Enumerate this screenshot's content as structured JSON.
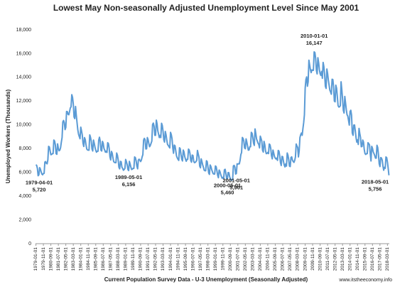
{
  "chart_data": {
    "type": "line",
    "title": "Lowest May Non-seasonally Adjusted Unemployment Level Since May 2001",
    "x_label": "Current Population Survey Data - U-3 Unemployment (Seasonally Adjusted)",
    "y_label": "Unemployed Workers (Thousands)",
    "source": "www.itstheeconomy.info",
    "ylim": [
      0,
      18000
    ],
    "yticks": [
      0,
      {
        "value": 2000,
        "label": "2,000"
      },
      {
        "value": 4000,
        "label": "4,000"
      },
      {
        "value": 6000,
        "label": "6,000"
      },
      {
        "value": 8000,
        "label": "8,000"
      },
      {
        "value": 10000,
        "label": "10,000"
      },
      {
        "value": 12000,
        "label": "12,000"
      },
      {
        "value": 14000,
        "label": "14,000"
      },
      {
        "value": 16000,
        "label": "16,000"
      },
      {
        "value": 18000,
        "label": "18,000"
      }
    ],
    "grid": false,
    "categories": [
      "1979-01-01",
      null,
      null,
      null,
      null,
      null,
      null,
      null,
      null,
      null,
      "1979-11-01",
      null,
      null,
      null,
      null,
      null,
      null,
      null,
      null,
      null,
      "1980-09-01",
      null,
      null,
      null,
      null,
      null,
      null,
      null,
      null,
      null,
      "1981-07-01",
      null,
      null,
      null,
      null,
      null,
      null,
      null,
      null,
      null,
      "1982-05-01",
      null,
      null,
      null,
      null,
      null,
      null,
      null,
      null,
      null,
      "1983-03-01",
      null,
      null,
      null,
      null,
      null,
      null,
      null,
      null,
      null,
      "1984-01-01",
      null,
      null,
      null,
      null,
      null,
      null,
      null,
      null,
      null,
      "1984-11-01",
      null,
      null,
      null,
      null,
      null,
      null,
      null,
      null,
      null,
      "1985-09-01",
      null,
      null,
      null,
      null,
      null,
      null,
      null,
      null,
      null,
      "1986-07-01",
      null,
      null,
      null,
      null,
      null,
      null,
      null,
      null,
      null,
      "1987-05-01",
      null,
      null,
      null,
      null,
      null,
      null,
      null,
      null,
      null,
      "1988-03-01",
      null,
      null,
      null,
      null,
      null,
      null,
      null,
      null,
      null,
      "1989-01-01",
      null,
      null,
      null,
      null,
      null,
      null,
      null,
      null,
      null,
      "1989-11-01",
      null,
      null,
      null,
      null,
      null,
      null,
      null,
      null,
      null,
      "1990-09-01",
      null,
      null,
      null,
      null,
      null,
      null,
      null,
      null,
      null,
      "1991-07-01",
      null,
      null,
      null,
      null,
      null,
      null,
      null,
      null,
      null,
      "1992-05-01",
      null,
      null,
      null,
      null,
      null,
      null,
      null,
      null,
      null,
      "1993-03-01",
      null,
      null,
      null,
      null,
      null,
      null,
      null,
      null,
      null,
      "1994-01-01",
      null,
      null,
      null,
      null,
      null,
      null,
      null,
      null,
      null,
      "1994-11-01",
      null,
      null,
      null,
      null,
      null,
      null,
      null,
      null,
      null,
      "1995-09-01",
      null,
      null,
      null,
      null,
      null,
      null,
      null,
      null,
      null,
      "1996-07-01",
      null,
      null,
      null,
      null,
      null,
      null,
      null,
      null,
      null,
      "1997-05-01",
      null,
      null,
      null,
      null,
      null,
      null,
      null,
      null,
      null,
      "1998-03-01",
      null,
      null,
      null,
      null,
      null,
      null,
      null,
      null,
      null,
      "1999-01-01",
      null,
      null,
      null,
      null,
      null,
      null,
      null,
      null,
      null,
      "1999-11-01",
      null,
      null,
      null,
      null,
      null,
      null,
      null,
      null,
      null,
      "2000-09-01",
      null,
      null,
      null,
      null,
      null,
      null,
      null,
      null,
      null,
      "2001-07-01",
      null,
      null,
      null,
      null,
      null,
      null,
      null,
      null,
      null,
      "2002-05-01",
      null,
      null,
      null,
      null,
      null,
      null,
      null,
      null,
      null,
      "2003-03-01",
      null,
      null,
      null,
      null,
      null,
      null,
      null,
      null,
      null,
      "2004-01-01",
      null,
      null,
      null,
      null,
      null,
      null,
      null,
      null,
      null,
      "2004-11-01",
      null,
      null,
      null,
      null,
      null,
      null,
      null,
      null,
      null,
      "2005-09-01",
      null,
      null,
      null,
      null,
      null,
      null,
      null,
      null,
      null,
      "2006-07-01",
      null,
      null,
      null,
      null,
      null,
      null,
      null,
      null,
      null,
      "2007-05-01",
      null,
      null,
      null,
      null,
      null,
      null,
      null,
      null,
      null,
      "2008-03-01",
      null,
      null,
      null,
      null,
      null,
      null,
      null,
      null,
      null,
      "2009-01-01",
      null,
      null,
      null,
      null,
      null,
      null,
      null,
      null,
      null,
      "2009-11-01",
      null,
      null,
      null,
      null,
      null,
      null,
      null,
      null,
      null,
      "2010-09-01",
      null,
      null,
      null,
      null,
      null,
      null,
      null,
      null,
      null,
      "2011-07-01",
      null,
      null,
      null,
      null,
      null,
      null,
      null,
      null,
      null,
      "2012-05-01",
      null,
      null,
      null,
      null,
      null,
      null,
      null,
      null,
      null,
      "2013-03-01",
      null,
      null,
      null,
      null,
      null,
      null,
      null,
      null,
      null,
      "2014-01-01",
      null,
      null,
      null,
      null,
      null,
      null,
      null,
      null,
      null,
      "2014-11-01",
      null,
      null,
      null,
      null,
      null,
      null,
      null,
      null,
      null,
      "2015-09-01",
      null,
      null,
      null,
      null,
      null,
      null,
      null,
      null,
      null,
      "2016-07-01",
      null,
      null,
      null,
      null,
      null,
      null,
      null,
      null,
      null,
      "2017-05-01",
      null,
      null,
      null,
      null,
      null,
      null,
      null,
      null,
      null,
      "2018-03-01",
      null,
      null
    ],
    "series": [
      {
        "color": "#5b9bd5",
        "values": [
          6650,
          6590,
          6340,
          5720,
          5800,
          6400,
          6280,
          6040,
          5860,
          5800,
          5900,
          5920,
          6870,
          6910,
          6760,
          6720,
          7050,
          8190,
          8140,
          7820,
          7490,
          7510,
          7580,
          7580,
          8720,
          8640,
          8320,
          7580,
          7520,
          8400,
          8030,
          7820,
          7870,
          8080,
          8540,
          8930,
          10250,
          10370,
          10190,
          9600,
          9780,
          11130,
          11120,
          10890,
          10850,
          11120,
          11420,
          11520,
          12540,
          12310,
          11750,
          10660,
          10530,
          11550,
          10820,
          10200,
          9600,
          9220,
          9020,
          8830,
          9810,
          9500,
          9150,
          8450,
          8180,
          8930,
          8760,
          8320,
          7970,
          7890,
          7870,
          7870,
          9160,
          8960,
          8630,
          7970,
          7800,
          8720,
          8450,
          8120,
          7870,
          7700,
          7780,
          7780,
          8720,
          8960,
          8630,
          7870,
          7800,
          8610,
          8450,
          8020,
          7870,
          7700,
          7780,
          7680,
          8500,
          8420,
          8010,
          7300,
          7050,
          7770,
          7620,
          7230,
          6910,
          6840,
          6820,
          6820,
          7630,
          7450,
          7070,
          6430,
          6300,
          6930,
          6900,
          6440,
          6340,
          6180,
          6240,
          6340,
          7090,
          6910,
          6660,
          6240,
          6156,
          6930,
          6700,
          6440,
          6240,
          6270,
          6340,
          6340,
          7300,
          7240,
          6970,
          6530,
          6300,
          7040,
          7110,
          7030,
          6910,
          7030,
          7300,
          7490,
          8720,
          8860,
          8740,
          7970,
          7990,
          8930,
          8760,
          8420,
          8160,
          8270,
          8450,
          8640,
          10030,
          10150,
          9880,
          9120,
          9120,
          10400,
          10090,
          9500,
          9220,
          8930,
          9120,
          8930,
          10140,
          9940,
          9460,
          8740,
          8550,
          9450,
          9170,
          8710,
          8350,
          8270,
          8160,
          8060,
          9370,
          9180,
          8840,
          8060,
          7610,
          8300,
          8240,
          7820,
          7390,
          7220,
          7100,
          7010,
          8070,
          7990,
          7490,
          7100,
          6960,
          7880,
          7730,
          7330,
          7100,
          6940,
          7100,
          7100,
          7960,
          7880,
          7590,
          7010,
          6860,
          7460,
          7420,
          6930,
          6820,
          6840,
          6910,
          7010,
          7850,
          7560,
          7280,
          6530,
          6390,
          7140,
          6900,
          6630,
          6430,
          6180,
          6140,
          6140,
          6980,
          6910,
          6450,
          5950,
          5830,
          6620,
          6490,
          6240,
          6050,
          5890,
          5860,
          5860,
          6540,
          6480,
          6140,
          5760,
          5550,
          6200,
          6080,
          5840,
          5660,
          5510,
          5570,
          5470,
          6210,
          6260,
          5930,
          5470,
          5460,
          5990,
          5970,
          5640,
          5470,
          5320,
          5380,
          5380,
          6540,
          6590,
          6450,
          5860,
          5901,
          6720,
          6700,
          6730,
          6720,
          7030,
          7490,
          7680,
          8940,
          8860,
          8630,
          8060,
          7990,
          8820,
          8550,
          8220,
          7870,
          7890,
          8160,
          8160,
          9370,
          9290,
          8940,
          8450,
          8270,
          9660,
          9270,
          8810,
          8640,
          8460,
          8350,
          8060,
          9050,
          8860,
          8630,
          7870,
          7710,
          8610,
          8340,
          7820,
          7580,
          7600,
          7680,
          7580,
          8390,
          8320,
          8010,
          7390,
          7140,
          7880,
          7620,
          7330,
          7200,
          7130,
          7200,
          7010,
          7850,
          7780,
          7380,
          6820,
          6580,
          7350,
          7310,
          6930,
          6620,
          6460,
          6720,
          6530,
          7630,
          7450,
          7070,
          6530,
          6490,
          7250,
          7310,
          7030,
          6910,
          6840,
          7010,
          7300,
          8390,
          8210,
          8110,
          7300,
          7800,
          8930,
          9170,
          9310,
          9120,
          9690,
          10180,
          10850,
          13080,
          13820,
          14040,
          13250,
          13630,
          15440,
          15040,
          14650,
          14400,
          14630,
          14590,
          14590,
          16147,
          16090,
          15600,
          14590,
          14290,
          15650,
          15240,
          14650,
          14300,
          14160,
          14500,
          13920,
          15260,
          14900,
          14250,
          13250,
          13070,
          14700,
          14320,
          13760,
          13340,
          12920,
          12770,
          12580,
          13840,
          13820,
          13210,
          12000,
          11940,
          13340,
          13080,
          12380,
          11620,
          11500,
          11520,
          11620,
          13630,
          12960,
          12170,
          11230,
          11000,
          12390,
          11850,
          11290,
          10850,
          10740,
          10370,
          9980,
          11120,
          11230,
          10820,
          9310,
          9120,
          9980,
          9990,
          9500,
          8930,
          8550,
          8740,
          8350,
          9700,
          9290,
          8940,
          8160,
          8180,
          8720,
          8550,
          7920,
          7580,
          7510,
          7580,
          7580,
          8500,
          8420,
          8320,
          7580,
          6960,
          8190,
          8030,
          7720,
          7580,
          7410,
          7200,
          7200,
          8280,
          8100,
          7490,
          6720,
          6490,
          7250,
          7210,
          7030,
          6530,
          6180,
          6430,
          6340,
          7300,
          7240,
          6860,
          6340,
          5756
        ]
      }
    ],
    "annotations": [
      {
        "date": "1979-04-01",
        "value": 5720,
        "label": "5,720"
      },
      {
        "date": "1989-05-01",
        "value": 6156,
        "label": "6,156"
      },
      {
        "date": "2000-05-01",
        "value": 5460,
        "label": "5,460"
      },
      {
        "date": "2001-05-01",
        "value": 5901,
        "label": "5,901"
      },
      {
        "date": "2010-01-01",
        "value": 16147,
        "label": "16,147"
      },
      {
        "date": "2018-05-01",
        "value": 5756,
        "label": "5,756"
      }
    ]
  }
}
